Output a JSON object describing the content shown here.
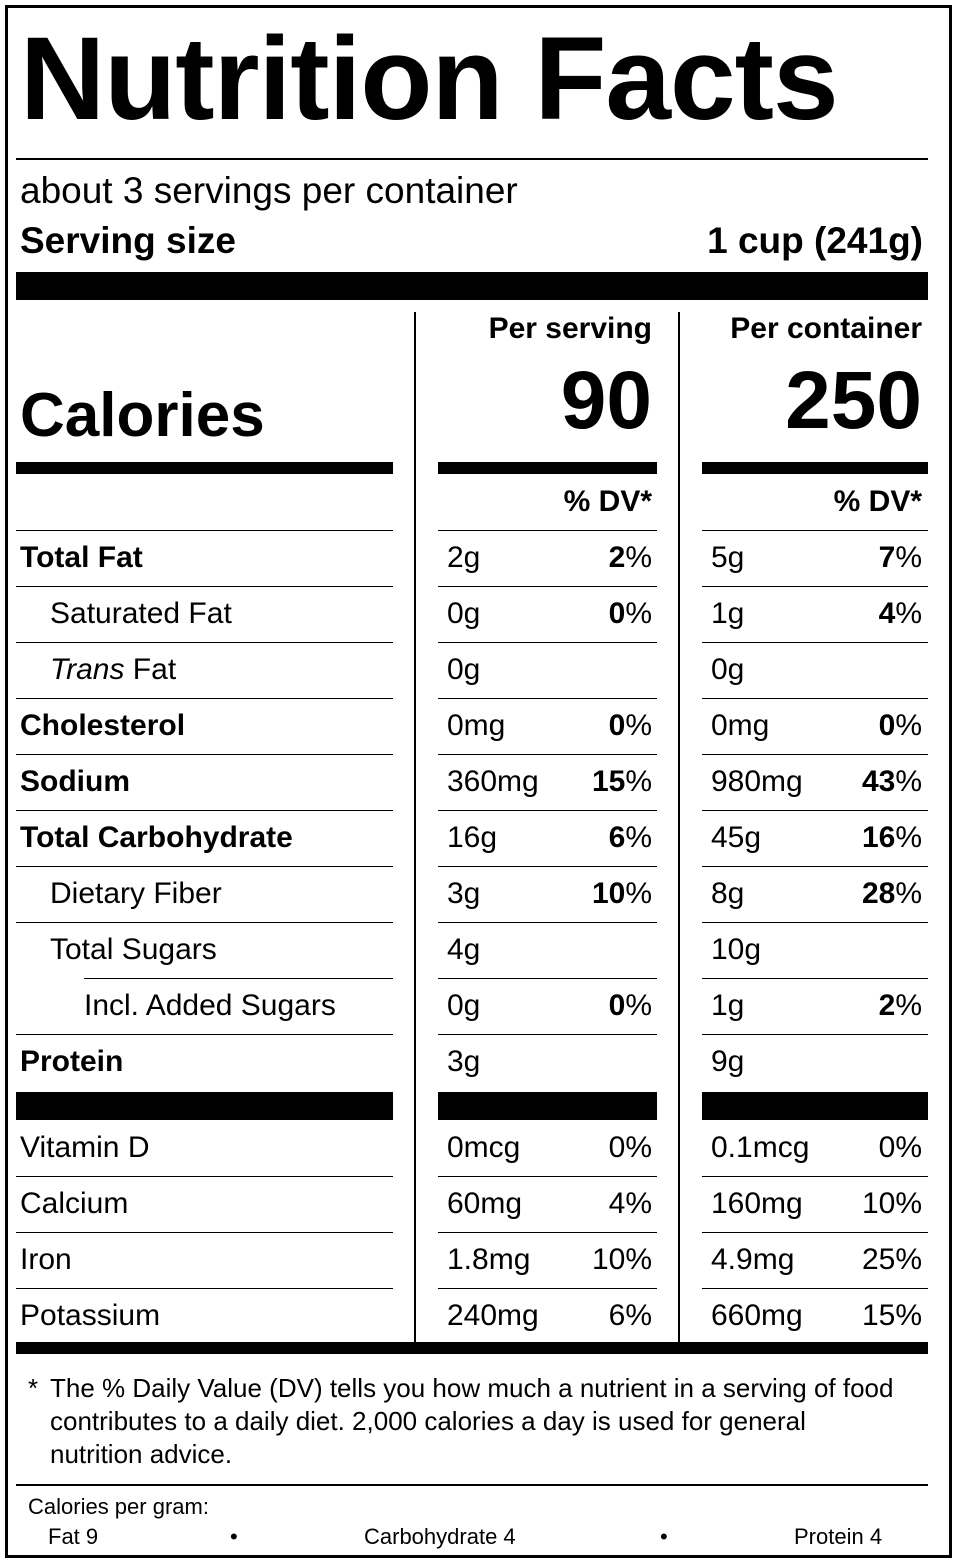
{
  "title": "Nutrition Facts",
  "servings_per_container": "about 3 servings per container",
  "serving_size_label": "Serving size",
  "serving_size_value": "1 cup (241g)",
  "columns": {
    "per_serving_label": "Per serving",
    "per_container_label": "Per container",
    "dv_label": "% DV*"
  },
  "calories": {
    "label": "Calories",
    "per_serving": "90",
    "per_container": "250"
  },
  "nutrients": [
    {
      "name": "Total Fat",
      "serving_amount": "2g",
      "serving_dv": "2",
      "container_amount": "5g",
      "container_dv": "7"
    },
    {
      "name": "Saturated Fat",
      "serving_amount": "0g",
      "serving_dv": "0",
      "container_amount": "1g",
      "container_dv": "4"
    },
    {
      "name_italic": "Trans",
      "name_rest": " Fat",
      "serving_amount": "0g",
      "container_amount": "0g"
    },
    {
      "name": "Cholesterol",
      "serving_amount": "0mg",
      "serving_dv": "0",
      "container_amount": "0mg",
      "container_dv": "0"
    },
    {
      "name": "Sodium",
      "serving_amount": "360mg",
      "serving_dv": "15",
      "container_amount": "980mg",
      "container_dv": "43"
    },
    {
      "name": "Total Carbohydrate",
      "serving_amount": "16g",
      "serving_dv": "6",
      "container_amount": "45g",
      "container_dv": "16"
    },
    {
      "name": "Dietary Fiber",
      "serving_amount": "3g",
      "serving_dv": "10",
      "container_amount": "8g",
      "container_dv": "28"
    },
    {
      "name": "Total Sugars",
      "serving_amount": "4g",
      "container_amount": "10g"
    },
    {
      "name": "Incl. Added Sugars",
      "serving_amount": "0g",
      "serving_dv": "0",
      "container_amount": "1g",
      "container_dv": "2"
    },
    {
      "name": "Protein",
      "serving_amount": "3g",
      "container_amount": "9g"
    }
  ],
  "percent_sign": "%",
  "vitamins": [
    {
      "name": "Vitamin D",
      "serving_amount": "0mcg",
      "serving_dv": "0%",
      "container_amount": "0.1mcg",
      "container_dv": "0%"
    },
    {
      "name": "Calcium",
      "serving_amount": "60mg",
      "serving_dv": "4%",
      "container_amount": "160mg",
      "container_dv": "10%"
    },
    {
      "name": "Iron",
      "serving_amount": "1.8mg",
      "serving_dv": "10%",
      "container_amount": "4.9mg",
      "container_dv": "25%"
    },
    {
      "name": "Potassium",
      "serving_amount": "240mg",
      "serving_dv": "6%",
      "container_amount": "660mg",
      "container_dv": "15%"
    }
  ],
  "footnote": {
    "star": "*",
    "text": "The % Daily Value (DV) tells you how much a nutrient in a serving of food contributes to a daily diet. 2,000 calories a day is used for general nutrition advice."
  },
  "calories_per_gram": {
    "label": "Calories per gram:",
    "fat": "Fat 9",
    "carbohydrate": "Carbohydrate 4",
    "protein": "Protein 4",
    "bullet": "•"
  }
}
